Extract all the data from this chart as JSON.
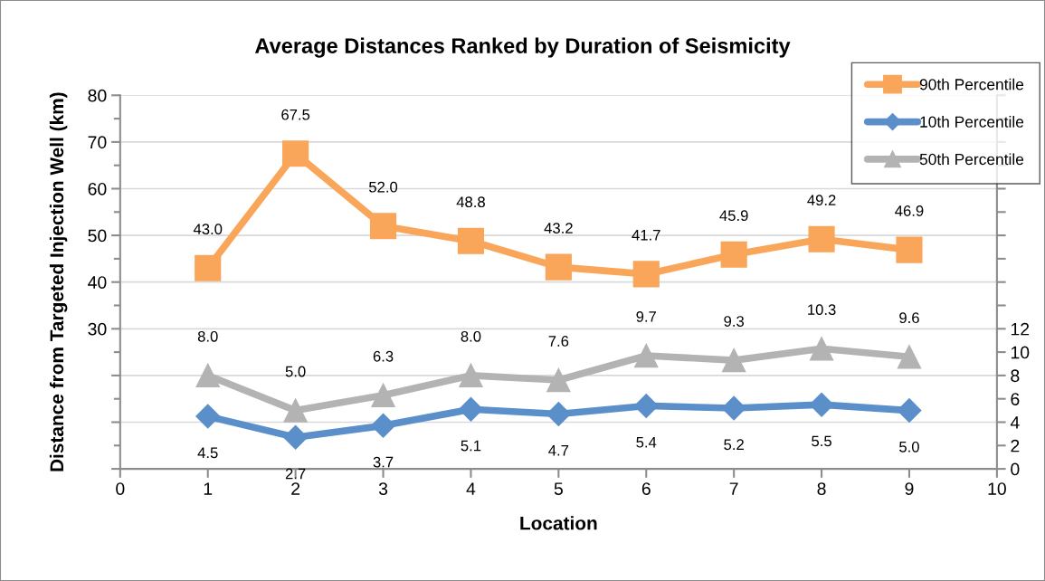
{
  "chart_data": {
    "type": "line",
    "title": "Average Distances Ranked by Duration of Seismicity",
    "xlabel": "Location",
    "ylabel": "Distance from Targeted Injection Well (km)",
    "x": [
      1,
      2,
      3,
      4,
      5,
      6,
      7,
      8,
      9
    ],
    "series": [
      {
        "name": "90th Percentile",
        "color": "#f9a65a",
        "marker": "square",
        "values": [
          43.0,
          67.5,
          52.0,
          48.8,
          43.2,
          41.7,
          45.9,
          49.2,
          46.9
        ],
        "value_labels": [
          "43.0",
          "67.5",
          "52.0",
          "48.8",
          "43.2",
          "41.7",
          "45.9",
          "49.2",
          "46.9"
        ]
      },
      {
        "name": "10th Percentile",
        "color": "#5b8fca",
        "marker": "diamond",
        "axis": "y2",
        "values": [
          4.5,
          2.7,
          3.7,
          5.1,
          4.7,
          5.4,
          5.2,
          5.5,
          5.0
        ],
        "value_labels": [
          "4.5",
          "2.7",
          "3.7",
          "5.1",
          "4.7",
          "5.4",
          "5.2",
          "5.5",
          "5.0"
        ]
      },
      {
        "name": "50th Percentile",
        "color": "#b3b3b3",
        "marker": "triangle",
        "axis": "y2",
        "values": [
          8.0,
          5.0,
          6.3,
          8.0,
          7.6,
          9.7,
          9.3,
          10.3,
          9.6
        ],
        "value_labels": [
          "8.0",
          "5.0",
          "6.3",
          "8.0",
          "7.6",
          "9.7",
          "9.3",
          "10.3",
          "9.6"
        ]
      }
    ],
    "xlim": [
      0,
      10
    ],
    "xticks": [
      0,
      1,
      2,
      3,
      4,
      5,
      6,
      7,
      8,
      9,
      10
    ],
    "ylim": [
      0,
      80
    ],
    "yticks": [
      {
        "value": 0,
        "label": null
      },
      {
        "value": 10,
        "label": null
      },
      {
        "value": 20,
        "label": null
      },
      30,
      40,
      50,
      60,
      70,
      80
    ],
    "y2lim": [
      0,
      32
    ],
    "y2ticks": [
      0,
      2,
      4,
      6,
      8,
      10,
      12,
      {
        "value": 14,
        "label": null
      },
      {
        "value": 16,
        "label": null
      },
      {
        "value": 18,
        "label": null
      },
      {
        "value": 20,
        "label": null
      },
      {
        "value": 22,
        "label": null
      },
      {
        "value": 24,
        "label": null
      },
      {
        "value": 26,
        "label": null
      },
      {
        "value": 28,
        "label": null
      },
      {
        "value": 30,
        "label": null
      },
      {
        "value": 32,
        "label": null
      }
    ],
    "grid": "y",
    "legend": "top right",
    "line_style": "solid"
  }
}
